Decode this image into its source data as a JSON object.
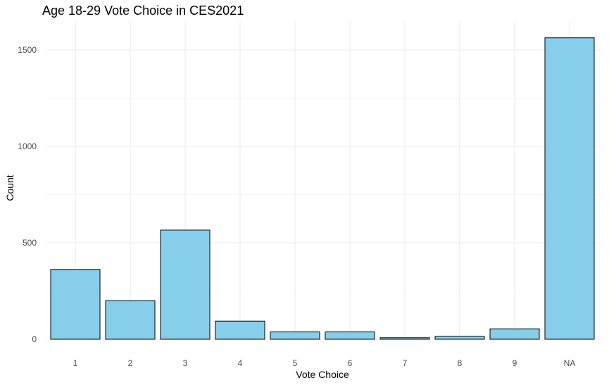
{
  "chart_data": {
    "type": "bar",
    "title": "Age 18-29 Vote Choice in CES2021",
    "xlabel": "Vote Choice",
    "ylabel": "Count",
    "categories": [
      "1",
      "2",
      "3",
      "4",
      "5",
      "6",
      "7",
      "8",
      "9",
      "NA"
    ],
    "values": [
      362,
      200,
      566,
      94,
      38,
      38,
      8,
      15,
      54,
      1563
    ],
    "yticks": [
      0,
      500,
      1000,
      1500
    ],
    "ylim": [
      0,
      1600
    ],
    "grid": true,
    "legend": "none",
    "colors": {
      "bar_fill": "#87CEEB",
      "bar_stroke": "#000000",
      "grid": "#ebebeb",
      "background": "#ffffff"
    }
  }
}
